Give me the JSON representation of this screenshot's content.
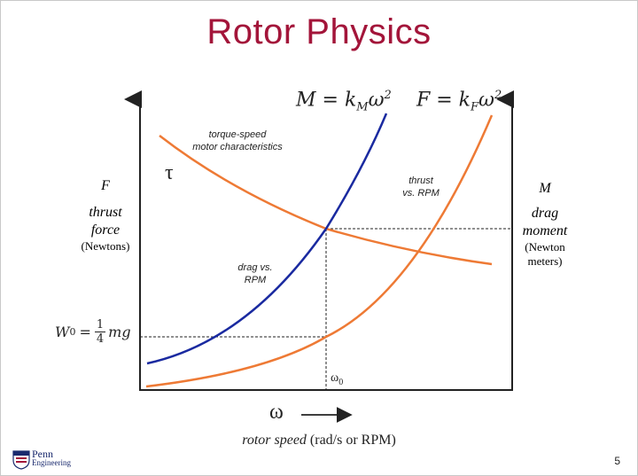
{
  "title": "Rotor Physics",
  "equations": {
    "moment": "M = k",
    "moment_sub": "M",
    "moment_exp": "ω",
    "moment_pow": "2",
    "force": "F = k",
    "force_sub": "F",
    "force_exp": "ω",
    "force_pow": "2"
  },
  "left_axis": {
    "symbol": "F",
    "line1": "thrust",
    "line2": "force",
    "unit": "(Newtons)"
  },
  "right_axis": {
    "symbol": "M",
    "line1": "drag",
    "line2": "moment",
    "unit1": "(Newton",
    "unit2": "meters)"
  },
  "x_axis": {
    "symbol": "ω",
    "label_italic": "rotor speed",
    "label_unit": "(rad/s or RPM)",
    "omega0": "ω",
    "omega0_sub": "0"
  },
  "annotations": {
    "torque_speed_1": "torque-speed",
    "torque_speed_2": "motor characteristics",
    "tau": "τ",
    "thrust_1": "thrust",
    "thrust_2": "vs. RPM",
    "drag_1": "drag vs.",
    "drag_2": "RPM"
  },
  "w0": {
    "lhs": "W",
    "lhs_sub": "0",
    "eq": "=",
    "num": "1",
    "den": "4",
    "rhs": "mg"
  },
  "colors": {
    "title": "#a3153a",
    "moment_curve": "#1a2aa0",
    "orange_curve": "#ee7a35",
    "axis": "#222222"
  },
  "footer": {
    "logo_text_1": "Penn",
    "logo_text_2": "Engineering",
    "page_number": "5"
  }
}
